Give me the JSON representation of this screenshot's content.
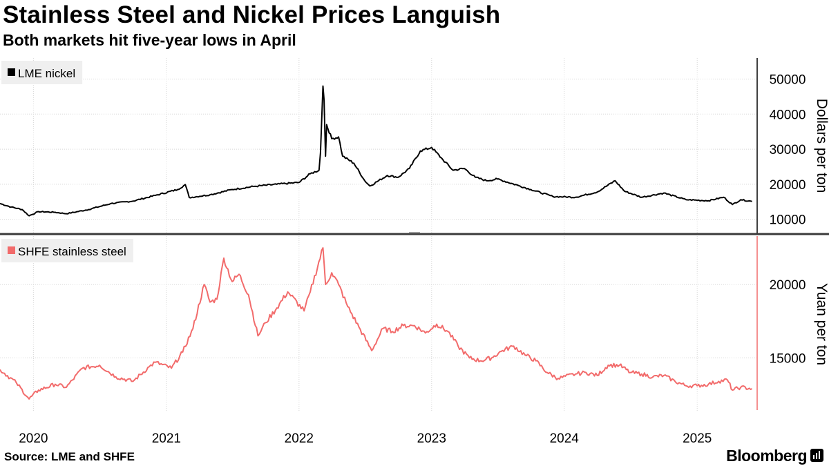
{
  "header": {
    "title": "Stainless Steel and Nickel Prices Languish",
    "subtitle": "Both markets hit five-year lows in April"
  },
  "footer": {
    "source": "Source: LME and SHFE",
    "brand": "Bloomberg",
    "brand_icon": "bloomberg-terminal-icon"
  },
  "chart_data": [
    {
      "type": "line",
      "panel": "top",
      "legend_placement": "top-left",
      "series": [
        {
          "name": "LME nickel",
          "color": "#000000",
          "points": [
            [
              "2019-10-01",
              14500
            ],
            [
              "2019-11-01",
              13500
            ],
            [
              "2019-12-01",
              12800
            ],
            [
              "2019-12-20",
              11000
            ],
            [
              "2020-01-15",
              12200
            ],
            [
              "2020-03-01",
              12000
            ],
            [
              "2020-04-01",
              11600
            ],
            [
              "2020-06-01",
              12800
            ],
            [
              "2020-08-01",
              14500
            ],
            [
              "2020-10-01",
              15200
            ],
            [
              "2020-12-01",
              16800
            ],
            [
              "2021-02-01",
              18500
            ],
            [
              "2021-02-22",
              19900
            ],
            [
              "2021-03-05",
              16200
            ],
            [
              "2021-05-01",
              17000
            ],
            [
              "2021-07-01",
              18500
            ],
            [
              "2021-09-01",
              19400
            ],
            [
              "2021-11-01",
              20000
            ],
            [
              "2022-01-01",
              20500
            ],
            [
              "2022-02-01",
              23000
            ],
            [
              "2022-02-25",
              24000
            ],
            [
              "2022-03-01",
              29000
            ],
            [
              "2022-03-08",
              48000
            ],
            [
              "2022-03-11",
              44000
            ],
            [
              "2022-03-15",
              28000
            ],
            [
              "2022-03-18",
              37000
            ],
            [
              "2022-04-01",
              33000
            ],
            [
              "2022-04-20",
              33500
            ],
            [
              "2022-05-01",
              28000
            ],
            [
              "2022-06-01",
              26000
            ],
            [
              "2022-07-01",
              21000
            ],
            [
              "2022-07-15",
              19500
            ],
            [
              "2022-09-01",
              22500
            ],
            [
              "2022-10-01",
              22000
            ],
            [
              "2022-11-01",
              24500
            ],
            [
              "2022-12-01",
              29500
            ],
            [
              "2023-01-01",
              30500
            ],
            [
              "2023-02-01",
              27000
            ],
            [
              "2023-03-01",
              24000
            ],
            [
              "2023-04-01",
              24500
            ],
            [
              "2023-05-01",
              22000
            ],
            [
              "2023-06-01",
              21000
            ],
            [
              "2023-07-01",
              21500
            ],
            [
              "2023-09-01",
              19500
            ],
            [
              "2023-10-01",
              18500
            ],
            [
              "2023-12-01",
              16500
            ],
            [
              "2024-02-01",
              16300
            ],
            [
              "2024-04-01",
              17800
            ],
            [
              "2024-05-20",
              21000
            ],
            [
              "2024-06-15",
              18000
            ],
            [
              "2024-08-01",
              16300
            ],
            [
              "2024-10-01",
              17500
            ],
            [
              "2024-12-01",
              15600
            ],
            [
              "2025-02-01",
              15300
            ],
            [
              "2025-03-15",
              16300
            ],
            [
              "2025-04-08",
              14200
            ],
            [
              "2025-05-01",
              15600
            ],
            [
              "2025-06-01",
              15100
            ]
          ]
        }
      ],
      "ylabel": "Dollars per ton",
      "ylim": [
        6000,
        56000
      ],
      "yticks": [
        10000,
        20000,
        30000,
        40000,
        50000
      ],
      "grid": true
    },
    {
      "type": "line",
      "panel": "bottom",
      "legend_placement": "top-left",
      "series": [
        {
          "name": "SHFE stainless steel",
          "color": "#f26b6b",
          "points": [
            [
              "2019-10-01",
              14200
            ],
            [
              "2019-11-15",
              13300
            ],
            [
              "2019-12-20",
              12200
            ],
            [
              "2020-01-15",
              12800
            ],
            [
              "2020-03-01",
              13200
            ],
            [
              "2020-04-01",
              13000
            ],
            [
              "2020-05-15",
              14300
            ],
            [
              "2020-07-01",
              14500
            ],
            [
              "2020-08-15",
              13700
            ],
            [
              "2020-10-01",
              13400
            ],
            [
              "2020-11-15",
              14400
            ],
            [
              "2020-12-01",
              14700
            ],
            [
              "2021-01-15",
              14300
            ],
            [
              "2021-02-15",
              15400
            ],
            [
              "2021-03-15",
              17000
            ],
            [
              "2021-04-15",
              20000
            ],
            [
              "2021-05-01",
              18800
            ],
            [
              "2021-05-20",
              19000
            ],
            [
              "2021-06-08",
              21800
            ],
            [
              "2021-07-01",
              20200
            ],
            [
              "2021-07-20",
              20700
            ],
            [
              "2021-08-15",
              19300
            ],
            [
              "2021-09-10",
              16500
            ],
            [
              "2021-10-01",
              17400
            ],
            [
              "2021-11-01",
              18400
            ],
            [
              "2021-12-01",
              19500
            ],
            [
              "2022-01-15",
              18200
            ],
            [
              "2022-02-01",
              19500
            ],
            [
              "2022-03-08",
              22500
            ],
            [
              "2022-03-15",
              20000
            ],
            [
              "2022-04-01",
              20800
            ],
            [
              "2022-04-20",
              20000
            ],
            [
              "2022-05-15",
              18500
            ],
            [
              "2022-06-15",
              17100
            ],
            [
              "2022-07-20",
              15500
            ],
            [
              "2022-08-20",
              17000
            ],
            [
              "2022-09-15",
              16800
            ],
            [
              "2022-10-15",
              17200
            ],
            [
              "2022-11-15",
              17200
            ],
            [
              "2022-12-15",
              16700
            ],
            [
              "2023-01-15",
              17300
            ],
            [
              "2023-02-15",
              16800
            ],
            [
              "2023-03-15",
              15800
            ],
            [
              "2023-04-15",
              15000
            ],
            [
              "2023-05-15",
              14800
            ],
            [
              "2023-06-15",
              15000
            ],
            [
              "2023-07-15",
              15500
            ],
            [
              "2023-08-15",
              15800
            ],
            [
              "2023-09-15",
              15200
            ],
            [
              "2023-10-15",
              14800
            ],
            [
              "2023-11-15",
              14000
            ],
            [
              "2023-12-15",
              13600
            ],
            [
              "2024-02-01",
              13900
            ],
            [
              "2024-03-01",
              14000
            ],
            [
              "2024-04-01",
              13800
            ],
            [
              "2024-05-01",
              14500
            ],
            [
              "2024-06-01",
              14500
            ],
            [
              "2024-07-01",
              14000
            ],
            [
              "2024-08-01",
              13900
            ],
            [
              "2024-09-01",
              13700
            ],
            [
              "2024-10-01",
              13800
            ],
            [
              "2024-11-01",
              13400
            ],
            [
              "2024-12-01",
              13100
            ],
            [
              "2025-01-01",
              13100
            ],
            [
              "2025-02-01",
              13200
            ],
            [
              "2025-03-01",
              13400
            ],
            [
              "2025-03-25",
              13500
            ],
            [
              "2025-04-08",
              12800
            ],
            [
              "2025-05-01",
              13000
            ],
            [
              "2025-06-01",
              12900
            ]
          ]
        }
      ],
      "ylabel": "Yuan per ton",
      "ylim": [
        11300,
        23300
      ],
      "yticks": [
        15000,
        20000
      ],
      "grid": true
    }
  ],
  "xaxis": {
    "range": [
      "2019-10-01",
      "2025-06-15"
    ],
    "ticks": [
      {
        "date": "2020-01-01",
        "label": "2020"
      },
      {
        "date": "2021-01-01",
        "label": "2021"
      },
      {
        "date": "2022-01-01",
        "label": "2022"
      },
      {
        "date": "2023-01-01",
        "label": "2023"
      },
      {
        "date": "2024-01-01",
        "label": "2024"
      },
      {
        "date": "2025-01-01",
        "label": "2025"
      }
    ]
  }
}
